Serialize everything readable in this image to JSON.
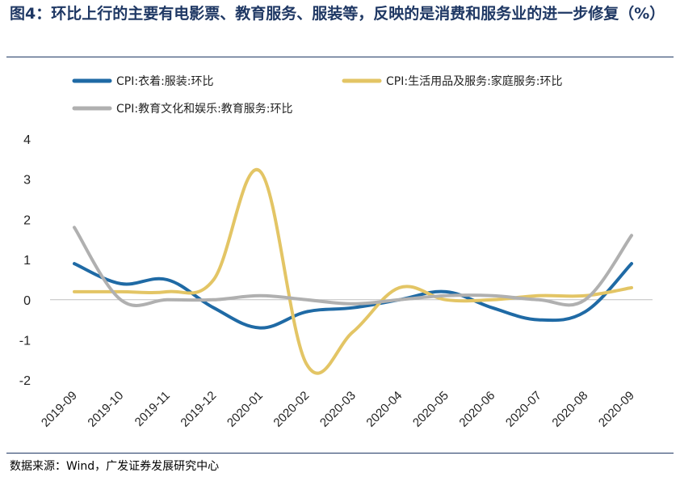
{
  "header": {
    "title": "图4：环比上行的主要有电影票、教育服务、服装等，反映的是消费和服务业的进一步修复（%）"
  },
  "footer": {
    "source": "数据来源：Wind，广发证券发展研究中心"
  },
  "chart_data": {
    "type": "line",
    "title": "",
    "xlabel": "",
    "ylabel": "",
    "ylim": [
      -2,
      4
    ],
    "yticks": [
      "4",
      "3",
      "2",
      "1",
      "0",
      "-1",
      "-2"
    ],
    "categories": [
      "2019-09",
      "2019-10",
      "2019-11",
      "2019-12",
      "2020-01",
      "2020-02",
      "2020-03",
      "2020-04",
      "2020-05",
      "2020-06",
      "2020-07",
      "2020-08",
      "2020-09"
    ],
    "legend_position": "top",
    "grid": false,
    "series": [
      {
        "name": "CPI:衣着:服装:环比",
        "color": "#1f6aa5",
        "values": [
          0.9,
          0.4,
          0.5,
          -0.2,
          -0.7,
          -0.3,
          -0.2,
          0.0,
          0.2,
          -0.2,
          -0.5,
          -0.3,
          0.9
        ]
      },
      {
        "name": "CPI:生活用品及服务:家庭服务:环比",
        "color": "#e3c565",
        "values": [
          0.2,
          0.2,
          0.2,
          0.5,
          3.2,
          -1.6,
          -0.8,
          0.3,
          0.0,
          0.0,
          0.1,
          0.1,
          0.3
        ]
      },
      {
        "name": "CPI:教育文化和娱乐:教育服务:环比",
        "color": "#b0b0b0",
        "values": [
          1.8,
          0.0,
          0.0,
          0.0,
          0.1,
          0.0,
          -0.1,
          0.0,
          0.1,
          0.1,
          0.0,
          0.0,
          1.6
        ]
      }
    ]
  }
}
